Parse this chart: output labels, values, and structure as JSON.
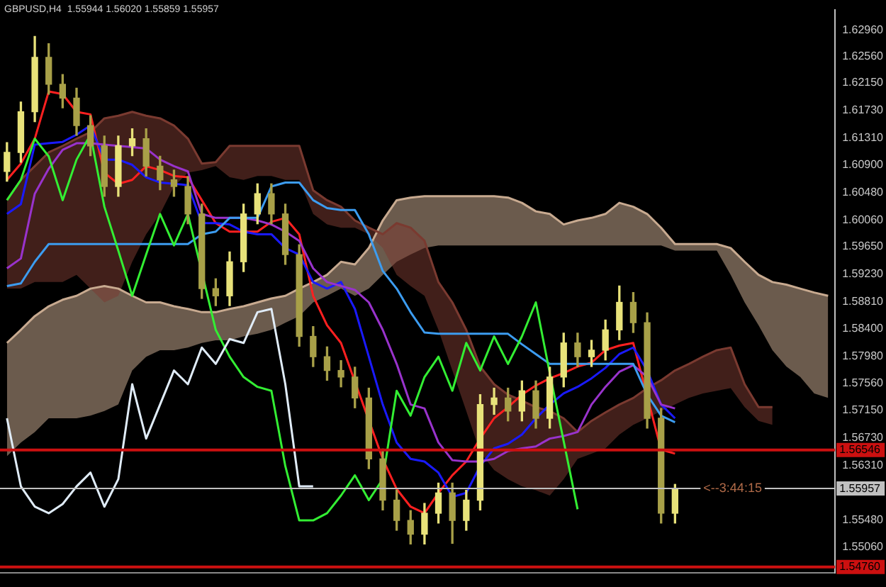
{
  "chart_data": {
    "type": "candlestick",
    "title": "GBPUSD,H4  1.55944 1.56020 1.55859 1.55957",
    "colors": [
      "#e8e27a",
      "#e8e27a",
      "#e8e27a",
      "#a8a048",
      "#a8a048",
      "#a8a048",
      "#a8a048",
      "#a8a048",
      "#e8e27a",
      "#e8e27a",
      "#a8a048",
      "#a8a048",
      "#a8a048",
      "#a8a048",
      "#a8a048",
      "#a8a048",
      "#e8e27a",
      "#e8e27a",
      "#e8e27a",
      "#a8a048",
      "#a8a048",
      "#a8a048",
      "#a8a048",
      "#a8a048",
      "#a8a048",
      "#a8a048",
      "#a8a048",
      "#a8a048",
      "#a8a048",
      "#a8a048",
      "#e8e27a",
      "#e8e27a",
      "#a8a048",
      "#e8e27a",
      "#e8e27a",
      "#e8e27a",
      "#a8a048",
      "#e8e27a",
      "#a8a048",
      "#e8e27a",
      "#e8e27a",
      "#a8a048",
      "#e8e27a",
      "#e8e27a",
      "#e8e27a",
      "#a8a048",
      "#a8a048",
      "#a8a048",
      "#e8e27a",
      null,
      null,
      null,
      null,
      null,
      null,
      null,
      null,
      null,
      null,
      null
    ],
    "categories": [
      null,
      null,
      null,
      null,
      null,
      null,
      null,
      null,
      null,
      null,
      null,
      null,
      null,
      null,
      null,
      null,
      null,
      null,
      null,
      null,
      null,
      null,
      null,
      null,
      null,
      null,
      null,
      null,
      null,
      null,
      null,
      null,
      null,
      null,
      null,
      null,
      null,
      null,
      null,
      null,
      null,
      null,
      null,
      null,
      null,
      null,
      null,
      null,
      null,
      null,
      null,
      null,
      null,
      null,
      null,
      null,
      null,
      null,
      null,
      null
    ],
    "ohlc": [
      [
        1.608,
        1.6124,
        1.6065,
        1.6109
      ],
      [
        1.6109,
        1.6186,
        1.6094,
        1.6171
      ],
      [
        1.6171,
        1.6286,
        1.6156,
        1.6254
      ],
      [
        1.6254,
        1.6275,
        1.6198,
        1.6213
      ],
      [
        1.6213,
        1.6228,
        1.6177,
        1.6192
      ],
      [
        1.6192,
        1.6207,
        1.6135,
        1.615
      ],
      [
        1.615,
        1.6165,
        1.6104,
        1.6119
      ],
      [
        1.6119,
        1.6134,
        1.6042,
        1.6057
      ],
      [
        1.6057,
        1.6134,
        1.6042,
        1.6119
      ],
      [
        1.6119,
        1.6145,
        1.6104,
        1.613
      ],
      [
        1.613,
        1.6145,
        1.6073,
        1.6088
      ],
      [
        1.6088,
        1.6103,
        1.6052,
        1.6067
      ],
      [
        1.6067,
        1.6082,
        1.6042,
        1.6057
      ],
      [
        1.6057,
        1.6072,
        1.6,
        1.6015
      ],
      [
        1.6015,
        1.603,
        1.5886,
        1.5901
      ],
      [
        1.5901,
        1.5916,
        1.5875,
        1.589
      ],
      [
        1.589,
        1.5957,
        1.5875,
        1.5942
      ],
      [
        1.5942,
        1.603,
        1.5927,
        1.6015
      ],
      [
        1.6015,
        1.6061,
        1.6,
        1.6046
      ],
      [
        1.6046,
        1.6061,
        1.6,
        1.6015
      ],
      [
        1.6015,
        1.603,
        1.5938,
        1.5953
      ],
      [
        1.5953,
        1.5968,
        1.5813,
        1.5828
      ],
      [
        1.5828,
        1.5843,
        1.5782,
        1.5797
      ],
      [
        1.5797,
        1.5812,
        1.5761,
        1.5776
      ],
      [
        1.5776,
        1.5791,
        1.5751,
        1.5766
      ],
      [
        1.5766,
        1.5781,
        1.5719,
        1.5734
      ],
      [
        1.5734,
        1.5749,
        1.5626,
        1.5641
      ],
      [
        1.5641,
        1.5656,
        1.5563,
        1.5578
      ],
      [
        1.5578,
        1.5593,
        1.5532,
        1.5547
      ],
      [
        1.5547,
        1.5562,
        1.5511,
        1.5526
      ],
      [
        1.5526,
        1.5573,
        1.5511,
        1.5558
      ],
      [
        1.5558,
        1.5604,
        1.5543,
        1.5589
      ],
      [
        1.5589,
        1.5604,
        1.5512,
        1.5547
      ],
      [
        1.5547,
        1.5593,
        1.5532,
        1.5578
      ],
      [
        1.5578,
        1.5739,
        1.5563,
        1.5724
      ],
      [
        1.5724,
        1.5749,
        1.5709,
        1.5734
      ],
      [
        1.5734,
        1.5749,
        1.5699,
        1.5714
      ],
      [
        1.5714,
        1.576,
        1.5699,
        1.5745
      ],
      [
        1.5745,
        1.576,
        1.5688,
        1.5703
      ],
      [
        1.5703,
        1.5781,
        1.5688,
        1.5766
      ],
      [
        1.5766,
        1.5833,
        1.5751,
        1.5818
      ],
      [
        1.5818,
        1.5833,
        1.5782,
        1.5797
      ],
      [
        1.5797,
        1.5822,
        1.5782,
        1.5807
      ],
      [
        1.5807,
        1.5853,
        1.5792,
        1.5838
      ],
      [
        1.5838,
        1.5905,
        1.5823,
        1.588
      ],
      [
        1.588,
        1.5895,
        1.5834,
        1.5849
      ],
      [
        1.5849,
        1.5864,
        1.5688,
        1.5703
      ],
      [
        1.5703,
        1.5718,
        1.5543,
        1.5558
      ],
      [
        1.5558,
        1.5602,
        1.5543,
        1.5596
      ],
      null,
      null,
      null,
      null,
      null,
      null,
      null,
      null,
      null,
      null,
      null
    ],
    "series": [
      {
        "type": "line",
        "color": "#7a3a30",
        "values": [
          1.6036,
          1.6067,
          1.6088,
          1.6109,
          1.6119,
          1.613,
          1.614,
          1.6161,
          1.6165,
          1.6171,
          1.6165,
          1.6161,
          1.615,
          1.613,
          1.6092,
          1.6094,
          1.6119,
          1.6119,
          1.6119,
          1.6119,
          1.6119,
          1.6119,
          1.6051,
          1.6036,
          1.6026,
          1.6005,
          1.5994,
          1.5984,
          1.6001,
          1.5994,
          1.5974,
          1.5911,
          1.588,
          1.5838,
          1.5782,
          1.5755,
          1.5739,
          1.573,
          1.572,
          1.5714,
          1.5703,
          1.5682,
          1.5699,
          1.5712,
          1.5724,
          1.5734,
          1.5749,
          1.5761,
          1.5776,
          1.5786,
          1.5797,
          1.5807,
          1.5811,
          1.5755,
          1.572,
          1.572,
          null,
          null,
          null,
          null
        ],
        "upper": [
          1.6036,
          1.6067,
          1.6088,
          1.6109,
          1.6119,
          1.613,
          1.614,
          1.6161,
          1.6165,
          1.6171,
          1.6165,
          1.6161,
          1.615,
          1.613,
          1.6092,
          1.6094,
          1.6119,
          1.6119,
          1.6119,
          1.6119,
          1.6119,
          1.6119,
          1.6051,
          1.6036,
          1.6026,
          1.6005,
          1.5994,
          1.5984,
          1.6001,
          1.5994,
          1.5974,
          1.5911,
          1.588,
          1.5838,
          1.5782,
          1.5755,
          1.5739,
          1.573,
          1.572,
          1.5714,
          1.5703,
          1.5682,
          1.5699,
          1.5712,
          1.5724,
          1.5734,
          1.5749,
          1.5761,
          1.5776,
          1.5786,
          1.5797,
          1.5807,
          1.5811,
          1.5755,
          1.572,
          1.572,
          null,
          null,
          null,
          null
        ],
        "lower": [
          1.5901,
          1.5901,
          1.5911,
          1.5911,
          1.5911,
          1.5922,
          1.5901,
          1.588,
          1.589,
          1.5942,
          1.5984,
          1.6015,
          1.6057,
          1.6078,
          1.6082,
          1.6088,
          1.6071,
          1.6067,
          1.6073,
          1.6073,
          1.6067,
          1.6067,
          1.6015,
          1.5999,
          1.5994,
          1.5994,
          1.5984,
          1.5963,
          1.5922,
          1.5905,
          1.589,
          1.5838,
          1.5776,
          1.5714,
          1.5651,
          1.5624,
          1.561,
          1.5599,
          1.5593,
          1.5585,
          1.561,
          1.5641,
          1.5649,
          1.5657,
          1.5678,
          1.5693,
          1.5703,
          1.5714,
          1.5724,
          1.5734,
          1.5741,
          1.5745,
          1.5749,
          1.572,
          1.5699,
          1.5693,
          null,
          null,
          null,
          null
        ]
      },
      {
        "type": "line",
        "color": "#c8aa90",
        "values": [
          1.5818,
          1.5838,
          1.5859,
          1.5874,
          1.5884,
          1.589,
          1.5901,
          1.5905,
          1.5901,
          1.589,
          1.588,
          1.588,
          1.5874,
          1.587,
          1.5865,
          1.5865,
          1.587,
          1.5874,
          1.588,
          1.5886,
          1.589,
          1.5901,
          1.5911,
          1.5922,
          1.5942,
          1.5938,
          1.5963,
          1.6005,
          1.6036,
          1.604,
          1.6042,
          1.6042,
          1.6042,
          1.6042,
          1.6042,
          1.6042,
          1.604,
          1.6032,
          1.6019,
          1.6015,
          1.5999,
          1.6005,
          1.6009,
          1.6015,
          1.6032,
          1.6026,
          1.6015,
          1.5994,
          1.5969,
          1.5969,
          1.5969,
          1.5969,
          1.5963,
          1.5942,
          1.5922,
          1.5911,
          1.5907,
          1.5901,
          1.5895,
          1.589
        ],
        "upper": [
          1.5818,
          1.5838,
          1.5859,
          1.5874,
          1.5884,
          1.589,
          1.5901,
          1.5905,
          1.5901,
          1.589,
          1.588,
          1.588,
          1.5874,
          1.587,
          1.5865,
          1.5865,
          1.587,
          1.5874,
          1.588,
          1.5886,
          1.589,
          1.5901,
          1.5911,
          1.5922,
          1.5942,
          1.5938,
          1.5963,
          1.6005,
          1.6036,
          1.604,
          1.6042,
          1.6042,
          1.6042,
          1.6042,
          1.6042,
          1.6042,
          1.604,
          1.6032,
          1.6019,
          1.6015,
          1.5999,
          1.6005,
          1.6009,
          1.6015,
          1.6032,
          1.6026,
          1.6015,
          1.5994,
          1.5969,
          1.5969,
          1.5969,
          1.5969,
          1.5963,
          1.5942,
          1.5922,
          1.5911,
          1.5907,
          1.5901,
          1.5895,
          1.589
        ],
        "lower": [
          1.5645,
          1.5666,
          1.5682,
          1.5703,
          1.5703,
          1.5703,
          1.5707,
          1.5714,
          1.5724,
          1.5776,
          1.5797,
          1.5807,
          1.5807,
          1.5811,
          1.5818,
          1.5822,
          1.5822,
          1.5828,
          1.5832,
          1.5838,
          1.5849,
          1.5859,
          1.588,
          1.589,
          1.5901,
          1.589,
          1.5901,
          1.5922,
          1.5942,
          1.5953,
          1.5963,
          1.5967,
          1.5967,
          1.5967,
          1.5967,
          1.5967,
          1.5967,
          1.5967,
          1.5967,
          1.5967,
          1.5967,
          1.5967,
          1.5967,
          1.5967,
          1.5967,
          1.5967,
          1.5967,
          1.5967,
          1.5959,
          1.5959,
          1.5959,
          1.5959,
          1.5922,
          1.588,
          1.5845,
          1.5807,
          1.5782,
          1.5766,
          1.5741,
          1.5734
        ]
      },
      {
        "type": "line",
        "color": "#e0ecf8",
        "values": [
          1.5703,
          1.5599,
          1.5568,
          1.5558,
          1.5572,
          1.5599,
          1.562,
          1.5568,
          1.561,
          1.5755,
          1.5672,
          1.5724,
          1.5776,
          1.5755,
          1.5811,
          1.5786,
          1.5824,
          1.5818,
          1.5865,
          1.587,
          1.5755,
          1.5599,
          1.5599,
          null,
          null,
          null,
          null,
          null,
          null,
          null,
          null,
          null,
          null,
          null,
          null,
          null,
          null,
          null,
          null,
          null,
          null,
          null,
          null,
          null,
          null,
          null,
          null,
          null,
          null,
          null,
          null,
          null,
          null,
          null,
          null,
          null,
          null,
          null,
          null,
          null
        ]
      },
      {
        "type": "line",
        "color": "#33ee33",
        "values": [
          1.6036,
          1.6067,
          1.613,
          1.6103,
          1.6036,
          1.6098,
          1.6136,
          1.6026,
          1.5959,
          1.589,
          1.5953,
          1.6015,
          1.5967,
          1.6015,
          null,
          1.5838,
          1.5797,
          1.5766,
          1.5751,
          1.5745,
          1.563,
          1.5547,
          1.5547,
          1.5558,
          1.5585,
          1.5616,
          1.5578,
          1.561,
          1.5745,
          1.5707,
          1.5766,
          1.5797,
          1.5745,
          1.5818,
          1.5776,
          1.5828,
          1.5786,
          1.5828,
          1.588,
          1.5772,
          1.5668,
          1.5564,
          null,
          null,
          null,
          null,
          null,
          null,
          null,
          null,
          null,
          null,
          null,
          null,
          null,
          null,
          null,
          null,
          null,
          null
        ]
      },
      {
        "type": "line",
        "color": "#3c9cf0",
        "values": [
          1.5905,
          1.5909,
          1.5942,
          1.5969,
          1.5969,
          1.5969,
          1.5969,
          1.5969,
          1.5969,
          1.5969,
          1.5969,
          1.5969,
          1.5969,
          1.5969,
          1.5984,
          1.5988,
          1.6009,
          1.6009,
          1.6009,
          1.6057,
          1.6063,
          1.6063,
          1.6036,
          1.6024,
          1.6021,
          1.6021,
          1.5984,
          1.5928,
          1.5901,
          1.5865,
          1.5834,
          1.5832,
          1.5832,
          1.5832,
          1.5832,
          1.5832,
          1.5832,
          1.5816,
          1.5801,
          1.5786,
          1.5786,
          1.5786,
          1.5786,
          1.5786,
          1.5786,
          1.5786,
          1.5739,
          1.5707,
          1.5697,
          null,
          null,
          null,
          null,
          null,
          null,
          null,
          null,
          null,
          null,
          null
        ]
      },
      {
        "type": "line",
        "color": "#9933cc",
        "values": [
          1.5932,
          1.5947,
          1.6046,
          1.6084,
          1.6113,
          1.6123,
          1.6123,
          1.6121,
          1.6119,
          1.6117,
          1.6115,
          1.6098,
          1.6088,
          1.608,
          1.6015,
          1.6009,
          1.6009,
          1.6009,
          1.6005,
          1.5999,
          1.5988,
          1.5974,
          1.5932,
          1.5911,
          1.5905,
          1.5899,
          1.588,
          1.5838,
          1.5786,
          1.5724,
          1.5718,
          1.5666,
          1.5639,
          1.5637,
          1.5637,
          1.5641,
          1.5653,
          1.5657,
          1.566,
          1.5672,
          1.5676,
          1.5682,
          1.5724,
          1.5751,
          1.5774,
          1.5784,
          1.5766,
          1.5724,
          1.5718,
          null,
          null,
          null,
          null,
          null,
          null,
          null,
          null,
          null,
          null,
          null
        ]
      },
      {
        "type": "line",
        "color": "#1a1aff",
        "values": [
          1.6015,
          1.603,
          1.6121,
          1.6123,
          1.6125,
          1.6136,
          1.615,
          1.6098,
          1.6098,
          1.609,
          1.6071,
          1.6063,
          1.6061,
          1.6059,
          1.6001,
          1.6001,
          1.5999,
          1.5988,
          1.5984,
          1.5984,
          1.5963,
          1.5953,
          1.5911,
          1.5901,
          1.5911,
          1.587,
          1.5797,
          1.5724,
          1.5666,
          1.5641,
          1.5637,
          1.562,
          1.5583,
          1.5589,
          1.563,
          1.5657,
          1.5664,
          1.5678,
          1.5703,
          1.5724,
          1.5741,
          1.5751,
          1.5764,
          1.578,
          1.5801,
          1.5811,
          1.5776,
          1.5724,
          1.5703,
          null,
          null,
          null,
          null,
          null,
          null,
          null,
          null,
          null,
          null,
          null
        ]
      },
      {
        "type": "line",
        "color": "#ff2020",
        "values": [
          1.6067,
          1.6092,
          1.613,
          1.6202,
          1.6198,
          1.6171,
          1.6167,
          1.6078,
          1.6061,
          1.6067,
          1.6088,
          1.6082,
          1.6073,
          1.6071,
          1.6036,
          1.6001,
          1.5988,
          1.5988,
          1.5988,
          1.6003,
          1.6009,
          1.5984,
          1.589,
          1.5845,
          1.5818,
          1.5759,
          null,
          1.5641,
          1.5595,
          1.5568,
          1.5558,
          1.5589,
          1.5616,
          1.5637,
          1.5672,
          1.5703,
          1.572,
          1.5739,
          1.5753,
          1.5764,
          1.5772,
          1.5782,
          1.5788,
          1.5807,
          1.5814,
          1.5818,
          null,
          1.5655,
          1.5649,
          null,
          null,
          null,
          null,
          null,
          null,
          null,
          null,
          null,
          null,
          null
        ]
      }
    ],
    "ylim": [
      1.5467,
      1.6327
    ],
    "yticks": [
      {
        "value": 1.6296,
        "label": "1.62960"
      },
      {
        "value": 1.6256,
        "label": "1.62560"
      },
      {
        "value": 1.6215,
        "label": "1.62150"
      },
      {
        "value": 1.6173,
        "label": "1.61730"
      },
      {
        "value": 1.6131,
        "label": "1.61310"
      },
      {
        "value": 1.609,
        "label": "1.60900"
      },
      {
        "value": 1.6048,
        "label": "1.60480"
      },
      {
        "value": 1.6006,
        "label": "1.60060"
      },
      {
        "value": 1.5965,
        "label": "1.59650"
      },
      {
        "value": 1.5923,
        "label": "1.59230"
      },
      {
        "value": 1.5881,
        "label": "1.58810"
      },
      {
        "value": 1.584,
        "label": "1.58400"
      },
      {
        "value": 1.5798,
        "label": "1.57980"
      },
      {
        "value": 1.5756,
        "label": "1.57560"
      },
      {
        "value": 1.5715,
        "label": "1.57150"
      },
      {
        "value": 1.5673,
        "label": "1.56730"
      },
      {
        "value": 1.5631,
        "label": "1.56310"
      },
      {
        "value": 1.5548,
        "label": "1.55480"
      },
      {
        "value": 1.5506,
        "label": "1.55060"
      }
    ],
    "ref_lines": [
      {
        "axis": "y",
        "value": 1.56546,
        "label": "1.56546",
        "color": "#cc1010"
      },
      {
        "axis": "y",
        "value": 1.55957,
        "label": "1.55957",
        "color": "#c0c0c0"
      },
      {
        "axis": "y",
        "value": 1.5476,
        "label": "1.54760",
        "color": "#cc1010"
      }
    ],
    "annotations": [
      {
        "text": "<--3:44:15",
        "y": 1.55957
      }
    ],
    "grid": false,
    "legend": false,
    "marker": "none",
    "tick_labels": "y"
  }
}
